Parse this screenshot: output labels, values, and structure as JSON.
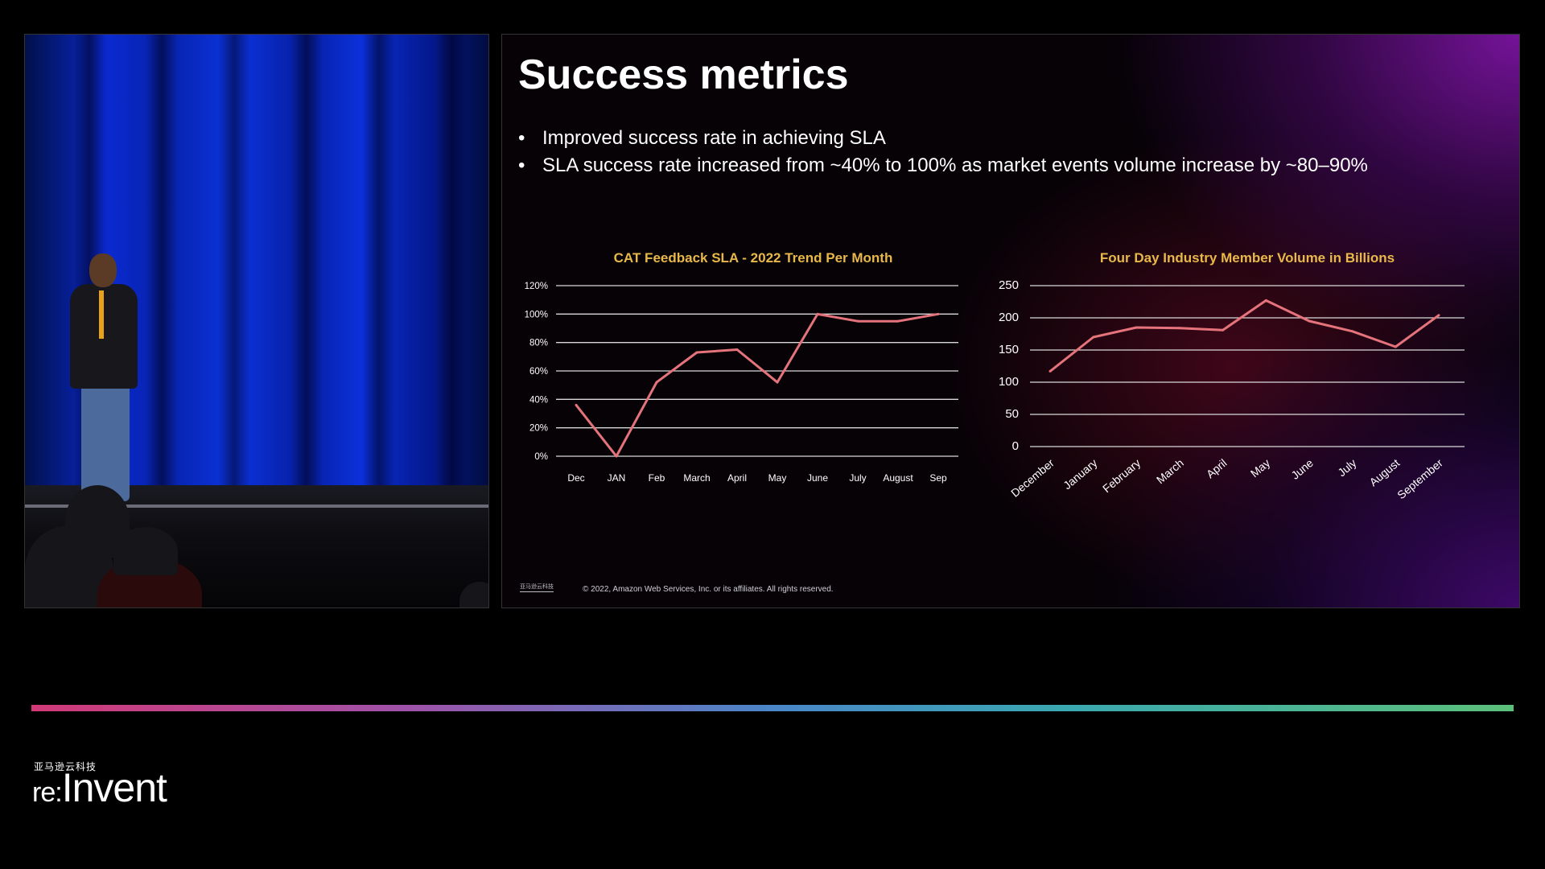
{
  "slide": {
    "title": "Success metrics",
    "bullets": [
      "Improved success rate in achieving SLA",
      "SLA success rate increased from ~40% to 100% as market events volume increase by ~80–90%"
    ],
    "copyright": "© 2022, Amazon Web Services, Inc. or its affiliates. All rights reserved.",
    "logo_text": "亚马逊云科技"
  },
  "event": {
    "subtitle": "亚马逊云科技",
    "logo_re": "re:",
    "logo_invent": "Invent"
  },
  "colors": {
    "line": "#e5737c",
    "chart_title": "#e9b84a",
    "grid": "#d9d9d9",
    "text": "#ffffff"
  },
  "chart_data": [
    {
      "type": "line",
      "title": "CAT Feedback SLA - 2022 Trend Per Month",
      "categories": [
        "Dec",
        "JAN",
        "Feb",
        "March",
        "April",
        "May",
        "June",
        "July",
        "August",
        "Sep"
      ],
      "values": [
        36,
        0,
        52,
        73,
        75,
        52,
        100,
        95,
        95,
        100
      ],
      "ylim": [
        0,
        120
      ],
      "yticks": [
        0,
        20,
        40,
        60,
        80,
        100,
        120
      ],
      "ytick_labels": [
        "0%",
        "20%",
        "40%",
        "60%",
        "80%",
        "100%",
        "120%"
      ],
      "xlabel": "",
      "ylabel": "",
      "grid": true,
      "legend": "none"
    },
    {
      "type": "line",
      "title": "Four Day Industry Member Volume in Billions",
      "categories": [
        "December",
        "January",
        "February",
        "March",
        "April",
        "May",
        "June",
        "July",
        "August",
        "September"
      ],
      "values": [
        117,
        170,
        185,
        184,
        181,
        227,
        195,
        179,
        155,
        204
      ],
      "ylim": [
        0,
        250
      ],
      "yticks": [
        0,
        50,
        100,
        150,
        200,
        250
      ],
      "ytick_labels": [
        "0",
        "50",
        "100",
        "150",
        "200",
        "250"
      ],
      "xlabel": "",
      "ylabel": "",
      "grid": true,
      "legend": "none"
    }
  ]
}
